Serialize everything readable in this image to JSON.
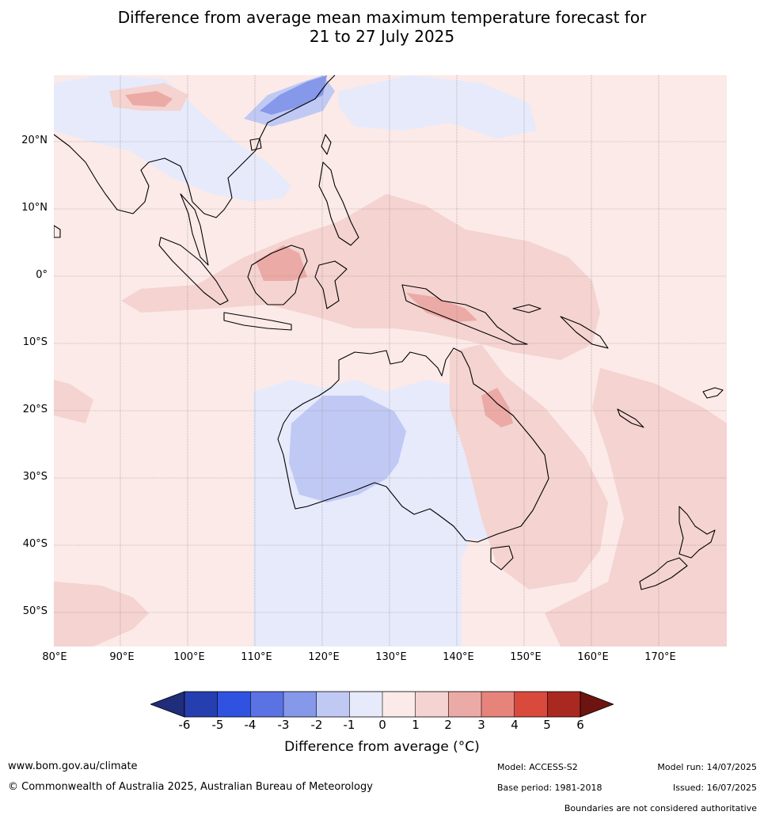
{
  "title": {
    "line1": "Difference from average mean maximum temperature forecast for",
    "line2": "21 to 27 July 2025"
  },
  "axes": {
    "lat_labels": [
      "20°N",
      "10°N",
      "0°",
      "10°S",
      "20°S",
      "30°S",
      "40°S",
      "50°S"
    ],
    "lon_labels": [
      "80°E",
      "90°E",
      "100°E",
      "110°E",
      "120°E",
      "130°E",
      "140°E",
      "150°E",
      "160°E",
      "170°E"
    ]
  },
  "colorbar": {
    "label": "Difference from average (°C)",
    "ticks": [
      "-6",
      "-5",
      "-4",
      "-3",
      "-2",
      "-1",
      "0",
      "1",
      "2",
      "3",
      "4",
      "5",
      "6"
    ],
    "colors": {
      "lt_-6": "#1f2d7a",
      "-6_-5": "#263fb0",
      "-5_-4": "#2f52e0",
      "-4_-3": "#5a72e3",
      "-3_-2": "#8598ea",
      "-2_-1": "#c0c9f4",
      "-1_0": "#e6eafb",
      "0_1": "#fbeae8",
      "1_2": "#f4d3d0",
      "2_3": "#ebaaa5",
      "3_4": "#e6847c",
      "4_5": "#d94a3c",
      "5_6": "#a9281f",
      "gt_6": "#6e1410"
    }
  },
  "footer": {
    "website": "www.bom.gov.au/climate",
    "copyright": "© Commonwealth of Australia 2025, Australian Bureau of Meteorology",
    "model": "Model: ACCESS-S2",
    "base_period": "Base period: 1981-2018",
    "model_run": "Model run: 14/07/2025",
    "issued": "Issued: 16/07/2025",
    "disclaimer": "Boundaries are not considered authoritative"
  }
}
